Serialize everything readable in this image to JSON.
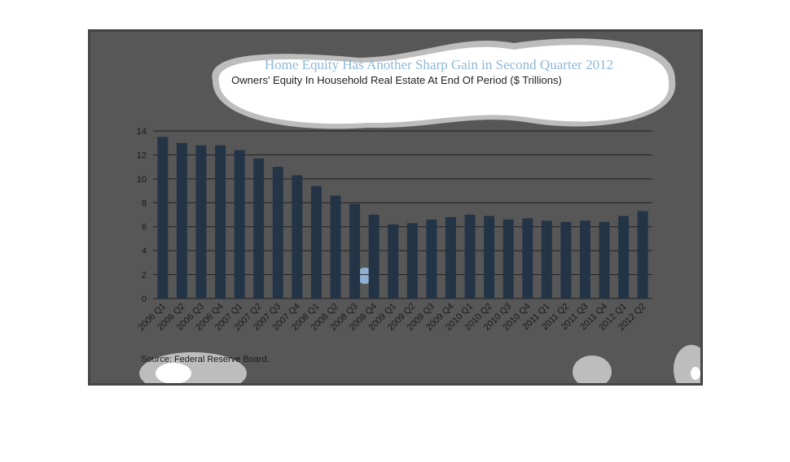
{
  "chart_data": {
    "type": "bar",
    "title": "Home Equity Has Another Sharp Gain in Second Quarter 2012",
    "subtitle": "Owners' Equity In Household Real Estate At End Of Period ($ Trillions)",
    "source": "Source:  Federal Reserve Board.",
    "xlabel": "",
    "ylabel": "",
    "ylim": [
      0,
      14
    ],
    "yticks": [
      0,
      2,
      4,
      6,
      8,
      10,
      12,
      14
    ],
    "grid": true,
    "legend": "none",
    "bar_color": "#243447",
    "categories": [
      "2006 Q1",
      "2006 Q2",
      "2006 Q3",
      "2006 Q4",
      "2007 Q1",
      "2007 Q2",
      "2007 Q3",
      "2007 Q4",
      "2008 Q1",
      "2008 Q2",
      "2008 Q3",
      "2008 Q4",
      "2009 Q1",
      "2009 Q2",
      "2009 Q3",
      "2009 Q4",
      "2010 Q1",
      "2010 Q2",
      "2010 Q3",
      "2010 Q4",
      "2011 Q1",
      "2011 Q2",
      "2011 Q3",
      "2011 Q4",
      "2012 Q1",
      "2012 Q2"
    ],
    "values": [
      13.5,
      13.0,
      12.8,
      12.8,
      12.4,
      11.7,
      11.0,
      10.3,
      9.4,
      8.6,
      7.9,
      7.0,
      6.2,
      6.3,
      6.6,
      6.8,
      7.0,
      6.9,
      6.6,
      6.7,
      6.5,
      6.4,
      6.5,
      6.4,
      6.9,
      7.3
    ]
  }
}
